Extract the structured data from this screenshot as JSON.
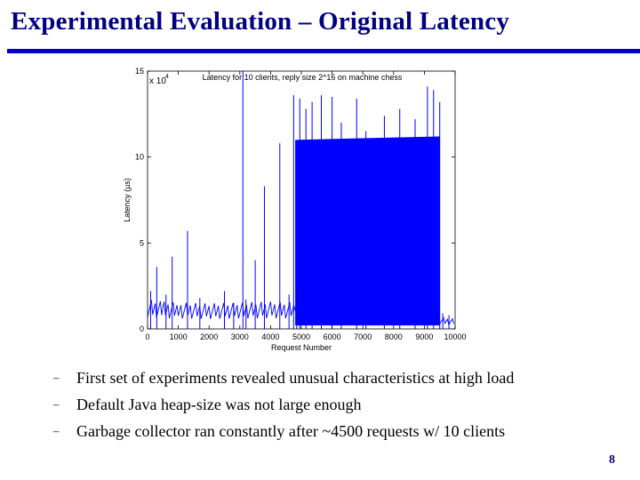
{
  "slide": {
    "title": "Experimental Evaluation – Original Latency",
    "page_number": "8"
  },
  "bullets": [
    {
      "marker": "–",
      "text": "First set of experiments revealed unusual characteristics at high load"
    },
    {
      "marker": "–",
      "text": "Default Java heap-size was not large enough"
    },
    {
      "marker": "–",
      "text": "Garbage collector ran constantly after ~4500 requests w/ 10 clients"
    }
  ],
  "colors": {
    "title": "#000080",
    "rule": "#0000cc",
    "series": "#0000ff"
  },
  "chart_data": {
    "type": "line",
    "title": "Latency for 10 clients, reply size 2^16 on machine chess",
    "xlabel": "Request Number",
    "ylabel": "Latency (µs)",
    "y_exponent_label": "x 10",
    "y_exponent_power": "4",
    "xlim": [
      0,
      10000
    ],
    "ylim": [
      0,
      150000
    ],
    "x_ticks": [
      0,
      1000,
      2000,
      3000,
      4000,
      5000,
      6000,
      7000,
      8000,
      9000,
      10000
    ],
    "x_tick_labels": [
      "0",
      "1000",
      "2000",
      "3000",
      "4000",
      "5000",
      "6000",
      "7000",
      "8000",
      "9000",
      "10000"
    ],
    "y_ticks": [
      0,
      50000,
      100000,
      150000
    ],
    "y_tick_labels": [
      "0",
      "5",
      "10",
      "15"
    ],
    "grid": false,
    "series": [
      {
        "baseline": [
          {
            "x": 0,
            "y": 15000
          },
          {
            "x": 500,
            "y": 14000
          },
          {
            "x": 1000,
            "y": 13500
          },
          {
            "x": 2000,
            "y": 13000
          },
          {
            "x": 3000,
            "y": 13500
          },
          {
            "x": 4000,
            "y": 14000
          },
          {
            "x": 4800,
            "y": 13500
          },
          {
            "x": 9500,
            "y": 6000
          },
          {
            "x": 10000,
            "y": 5000
          }
        ],
        "dense_band": [
          {
            "x": 4800,
            "y_low": 2000,
            "y_high": 110000
          },
          {
            "x": 9500,
            "y_low": 2000,
            "y_high": 112000
          }
        ],
        "spikes": [
          {
            "x": 100,
            "y": 22000
          },
          {
            "x": 300,
            "y": 36000
          },
          {
            "x": 600,
            "y": 20000
          },
          {
            "x": 800,
            "y": 42000
          },
          {
            "x": 1300,
            "y": 57000
          },
          {
            "x": 1700,
            "y": 18000
          },
          {
            "x": 2500,
            "y": 22000
          },
          {
            "x": 2800,
            "y": 15000
          },
          {
            "x": 3100,
            "y": 150000
          },
          {
            "x": 3200,
            "y": 17000
          },
          {
            "x": 3500,
            "y": 40000
          },
          {
            "x": 3800,
            "y": 83000
          },
          {
            "x": 4300,
            "y": 108000
          },
          {
            "x": 4600,
            "y": 20000
          },
          {
            "x": 4750,
            "y": 136000
          },
          {
            "x": 4850,
            "y": 13000
          },
          {
            "x": 4950,
            "y": 134000
          },
          {
            "x": 5150,
            "y": 128000
          },
          {
            "x": 5350,
            "y": 132000
          },
          {
            "x": 5650,
            "y": 136000
          },
          {
            "x": 6000,
            "y": 135000
          },
          {
            "x": 6300,
            "y": 120000
          },
          {
            "x": 6800,
            "y": 134000
          },
          {
            "x": 7100,
            "y": 115000
          },
          {
            "x": 7700,
            "y": 124000
          },
          {
            "x": 8200,
            "y": 128000
          },
          {
            "x": 8700,
            "y": 122000
          },
          {
            "x": 9100,
            "y": 141000
          },
          {
            "x": 9300,
            "y": 139000
          },
          {
            "x": 9500,
            "y": 132000
          },
          {
            "x": 9600,
            "y": 9000
          },
          {
            "x": 9800,
            "y": 8000
          }
        ]
      }
    ]
  }
}
